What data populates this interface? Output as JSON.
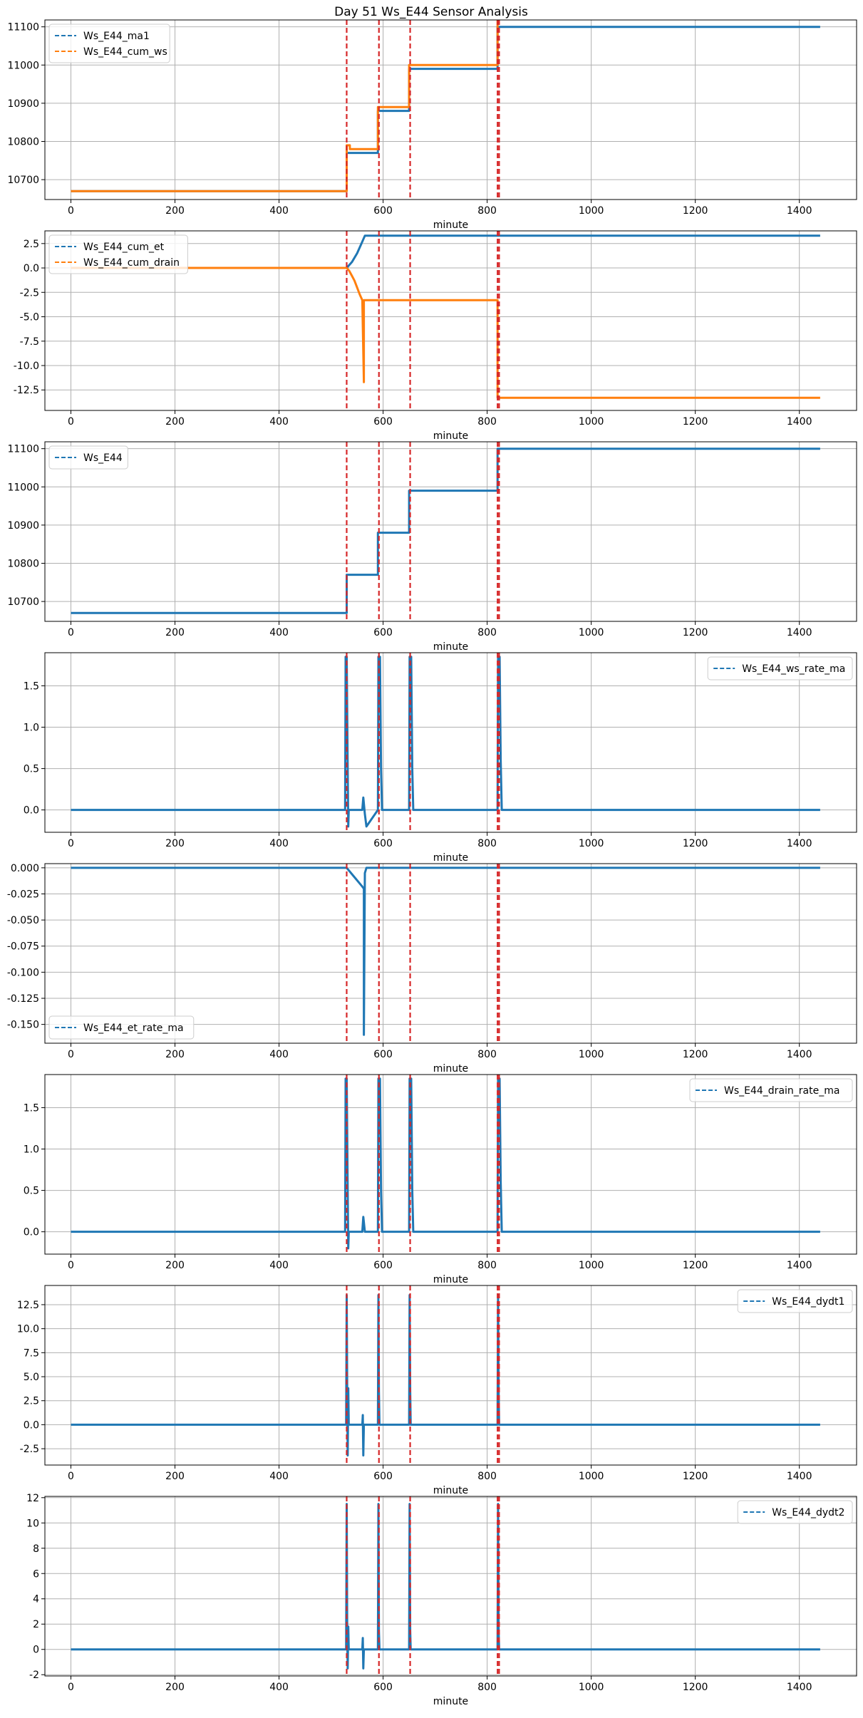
{
  "figure": {
    "title": "Day 51 Ws_E44 Sensor Analysis"
  },
  "colors": {
    "blue": "#1f77b4",
    "orange": "#ff7f0e",
    "event_line": "#d62728",
    "grid": "#b0b0b0"
  },
  "chart_data": [
    {
      "type": "line",
      "xlabel": "minute",
      "xlim": [
        -50,
        1510
      ],
      "xticks": [
        0,
        200,
        400,
        600,
        800,
        1000,
        1200,
        1400
      ],
      "ylim": [
        10648,
        11118
      ],
      "yticks": [
        10700,
        10800,
        10900,
        11000,
        11100
      ],
      "yticklabels": [
        "10700",
        "10800",
        "10900",
        "11000",
        "11100"
      ],
      "legend": "top-left",
      "event_lines": [
        530,
        592,
        652,
        820,
        823
      ],
      "series": [
        {
          "name": "Ws_E44_ma1",
          "color": "blue",
          "x": [
            0,
            530,
            530,
            590,
            590,
            650,
            650,
            820,
            820,
            1440
          ],
          "y": [
            10670,
            10670,
            10770,
            10770,
            10880,
            10880,
            10990,
            10990,
            11100,
            11100
          ]
        },
        {
          "name": "Ws_E44_cum_ws",
          "color": "orange",
          "x": [
            0,
            530,
            530,
            536,
            536,
            590,
            590,
            650,
            650,
            820,
            820,
            1440
          ],
          "y": [
            10670,
            10670,
            10790,
            10790,
            10780,
            10780,
            10890,
            10890,
            11000,
            11000,
            11120,
            11120
          ]
        }
      ]
    },
    {
      "type": "line",
      "xlabel": "minute",
      "xlim": [
        -50,
        1510
      ],
      "xticks": [
        0,
        200,
        400,
        600,
        800,
        1000,
        1200,
        1400
      ],
      "ylim": [
        -14.6,
        3.8
      ],
      "yticks": [
        2.5,
        0.0,
        -2.5,
        -5.0,
        -7.5,
        -10.0,
        -12.5
      ],
      "yticklabels": [
        "2.5",
        "0.0",
        "-2.5",
        "-5.0",
        "-7.5",
        "-10.0",
        "-12.5"
      ],
      "legend": "top-left",
      "event_lines": [
        530,
        592,
        652,
        820,
        823
      ],
      "series": [
        {
          "name": "Ws_E44_cum_et",
          "color": "blue",
          "x": [
            0,
            530,
            540,
            550,
            560,
            565,
            1440
          ],
          "y": [
            0,
            0,
            0.6,
            1.5,
            2.7,
            3.3,
            3.3
          ]
        },
        {
          "name": "Ws_E44_cum_drain",
          "color": "orange",
          "x": [
            0,
            530,
            535,
            540,
            545,
            550,
            555,
            560,
            563,
            563,
            565,
            820,
            820,
            1440
          ],
          "y": [
            0,
            0,
            -0.3,
            -0.8,
            -1.3,
            -2.0,
            -2.7,
            -3.3,
            -11.7,
            -3.3,
            -3.3,
            -3.3,
            -13.3,
            -13.3
          ]
        }
      ]
    },
    {
      "type": "line",
      "xlabel": "minute",
      "xlim": [
        -50,
        1510
      ],
      "xticks": [
        0,
        200,
        400,
        600,
        800,
        1000,
        1200,
        1400
      ],
      "ylim": [
        10648,
        11118
      ],
      "yticks": [
        10700,
        10800,
        10900,
        11000,
        11100
      ],
      "yticklabels": [
        "10700",
        "10800",
        "10900",
        "11000",
        "11100"
      ],
      "legend": "top-left",
      "event_lines": [
        530,
        592,
        652,
        820,
        823
      ],
      "series": [
        {
          "name": "Ws_E44",
          "color": "blue",
          "x": [
            0,
            530,
            530,
            590,
            590,
            650,
            650,
            820,
            820,
            1440
          ],
          "y": [
            10670,
            10670,
            10770,
            10770,
            10880,
            10880,
            10990,
            10990,
            11100,
            11100
          ]
        }
      ]
    },
    {
      "type": "line",
      "xlabel": "minute",
      "xlim": [
        -50,
        1510
      ],
      "xticks": [
        0,
        200,
        400,
        600,
        800,
        1000,
        1200,
        1400
      ],
      "ylim": [
        -0.27,
        1.9
      ],
      "yticks": [
        1.5,
        1.0,
        0.5,
        0.0
      ],
      "yticklabels": [
        "1.5",
        "1.0",
        "0.5",
        "0.0"
      ],
      "legend": "top-right",
      "event_lines": [
        530,
        592,
        652,
        820,
        823
      ],
      "series": [
        {
          "name": "Ws_E44_ws_rate_ma",
          "color": "blue",
          "x": [
            0,
            527,
            528,
            530,
            532,
            533,
            534,
            535,
            560,
            562,
            565,
            568,
            590,
            591,
            592,
            594,
            596,
            598,
            650,
            651,
            652,
            654,
            656,
            658,
            820,
            821,
            822,
            824,
            826,
            828,
            1440
          ],
          "y": [
            0,
            0,
            1.85,
            1.85,
            0.5,
            -0.2,
            0,
            0,
            0,
            0.15,
            -0.05,
            -0.2,
            0,
            1.85,
            1.85,
            1.85,
            0.5,
            0,
            0,
            1.85,
            1.85,
            1.85,
            0.5,
            0,
            0,
            1.85,
            1.85,
            1.85,
            0.6,
            0,
            0
          ]
        }
      ]
    },
    {
      "type": "line",
      "xlabel": "minute",
      "xlim": [
        -50,
        1510
      ],
      "xticks": [
        0,
        200,
        400,
        600,
        800,
        1000,
        1200,
        1400
      ],
      "ylim": [
        -0.168,
        0.004
      ],
      "yticks": [
        0.0,
        -0.025,
        -0.05,
        -0.075,
        -0.1,
        -0.125,
        -0.15
      ],
      "yticklabels": [
        "0.000",
        "-0.025",
        "-0.050",
        "-0.075",
        "-0.100",
        "-0.125",
        "-0.150"
      ],
      "legend": "bottom-left",
      "event_lines": [
        530,
        592,
        652,
        820,
        823
      ],
      "series": [
        {
          "name": "Ws_E44_et_rate_ma",
          "color": "blue",
          "x": [
            0,
            530,
            545,
            560,
            563,
            563,
            565,
            568,
            1440
          ],
          "y": [
            0,
            0,
            -0.009,
            -0.018,
            -0.02,
            -0.16,
            -0.005,
            0,
            0
          ]
        }
      ]
    },
    {
      "type": "line",
      "xlabel": "minute",
      "xlim": [
        -50,
        1510
      ],
      "xticks": [
        0,
        200,
        400,
        600,
        800,
        1000,
        1200,
        1400
      ],
      "ylim": [
        -0.27,
        1.9
      ],
      "yticks": [
        1.5,
        1.0,
        0.5,
        0.0
      ],
      "yticklabels": [
        "1.5",
        "1.0",
        "0.5",
        "0.0"
      ],
      "legend": "top-right",
      "event_lines": [
        530,
        592,
        652,
        820,
        823
      ],
      "series": [
        {
          "name": "Ws_E44_drain_rate_ma",
          "color": "blue",
          "x": [
            0,
            527,
            528,
            530,
            532,
            533,
            534,
            535,
            560,
            562,
            565,
            568,
            590,
            591,
            592,
            594,
            596,
            598,
            650,
            651,
            652,
            654,
            656,
            658,
            820,
            821,
            822,
            824,
            826,
            828,
            1440
          ],
          "y": [
            0,
            0,
            1.85,
            1.85,
            0.5,
            -0.2,
            0,
            0,
            0,
            0.18,
            0,
            0,
            0,
            1.85,
            1.85,
            1.85,
            0.5,
            0,
            0,
            1.85,
            1.85,
            1.85,
            0.5,
            0,
            0,
            1.85,
            1.85,
            1.85,
            0.6,
            0,
            0
          ]
        }
      ]
    },
    {
      "type": "line",
      "xlabel": "minute",
      "xlim": [
        -50,
        1510
      ],
      "xticks": [
        0,
        200,
        400,
        600,
        800,
        1000,
        1200,
        1400
      ],
      "ylim": [
        -4.2,
        14.5
      ],
      "yticks": [
        12.5,
        10.0,
        7.5,
        5.0,
        2.5,
        0.0,
        -2.5
      ],
      "yticklabels": [
        "12.5",
        "10.0",
        "7.5",
        "5.0",
        "2.5",
        "0.0",
        "-2.5"
      ],
      "legend": "top-right",
      "event_lines": [
        530,
        592,
        652,
        820,
        823
      ],
      "series": [
        {
          "name": "Ws_E44_dydt1",
          "color": "blue",
          "x": [
            0,
            529,
            530,
            531,
            532,
            533,
            534,
            535,
            560,
            561,
            562,
            563,
            564,
            590,
            591,
            592,
            593,
            594,
            650,
            651,
            652,
            653,
            654,
            820,
            821,
            822,
            823,
            824,
            1440
          ],
          "y": [
            0,
            0,
            13.5,
            3.5,
            -3.2,
            3.8,
            0,
            0,
            0,
            1.0,
            -3.2,
            0,
            0,
            0,
            13.5,
            3.5,
            0,
            0,
            0,
            13.5,
            3.5,
            0,
            0,
            0,
            13.5,
            3.5,
            0,
            0,
            0
          ]
        }
      ]
    },
    {
      "type": "line",
      "xlabel": "minute",
      "xlim": [
        -50,
        1510
      ],
      "xticks": [
        0,
        200,
        400,
        600,
        800,
        1000,
        1200,
        1400
      ],
      "ylim": [
        -2.1,
        12.1
      ],
      "yticks": [
        12,
        10,
        8,
        6,
        4,
        2,
        0,
        -2
      ],
      "yticklabels": [
        "12",
        "10",
        "8",
        "6",
        "4",
        "2",
        "0",
        "-2"
      ],
      "legend": "top-right",
      "event_lines": [
        530,
        592,
        652,
        820,
        823
      ],
      "series": [
        {
          "name": "Ws_E44_dydt2",
          "color": "blue",
          "x": [
            0,
            529,
            530,
            531,
            532,
            533,
            534,
            535,
            560,
            561,
            562,
            563,
            564,
            590,
            591,
            592,
            593,
            594,
            650,
            651,
            652,
            653,
            654,
            820,
            821,
            822,
            823,
            824,
            1440
          ],
          "y": [
            0,
            0,
            11.5,
            1.5,
            -1.5,
            1.8,
            0,
            0,
            0,
            0.9,
            -1.5,
            0,
            0,
            0,
            11.5,
            1.5,
            0,
            0,
            0,
            11.5,
            1.5,
            0,
            0,
            0,
            11.5,
            1.5,
            0,
            0,
            0
          ]
        }
      ]
    }
  ]
}
